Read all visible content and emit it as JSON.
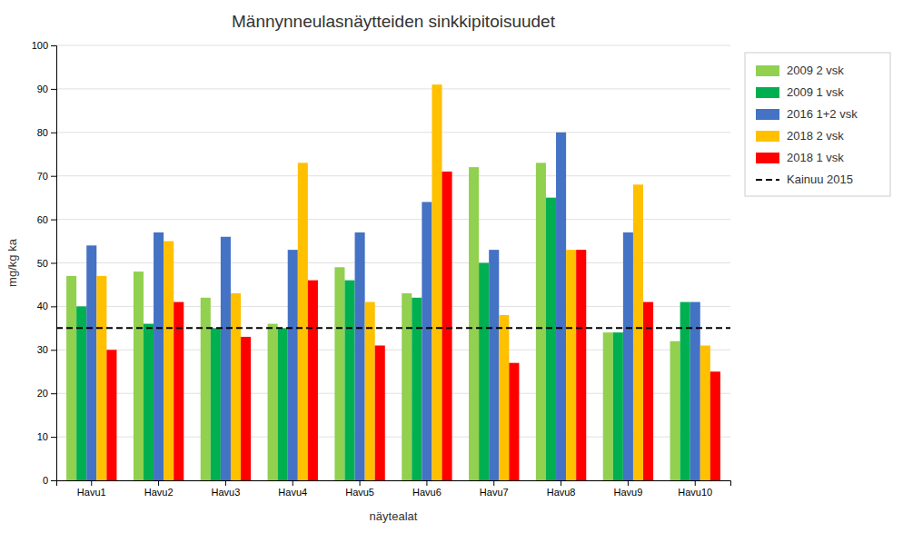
{
  "chart_data": {
    "type": "bar",
    "title": "Männynneulasnäytteiden sinkkipitoisuudet",
    "xlabel": "näytealat",
    "ylabel": "mg/kg ka",
    "categories": [
      "Havu1",
      "Havu2",
      "Havu3",
      "Havu4",
      "Havu5",
      "Havu6",
      "Havu7",
      "Havu8",
      "Havu9",
      "Havu10"
    ],
    "series": [
      {
        "name": "2009 2 vsk",
        "color": "#92D050",
        "values": [
          47,
          48,
          42,
          36,
          49,
          43,
          72,
          73,
          34,
          32
        ]
      },
      {
        "name": "2009 1 vsk",
        "color": "#00B050",
        "values": [
          40,
          36,
          35,
          35,
          46,
          42,
          50,
          65,
          34,
          41
        ]
      },
      {
        "name": "2016 1+2 vsk",
        "color": "#4472C4",
        "values": [
          54,
          57,
          56,
          53,
          57,
          64,
          53,
          80,
          57,
          41
        ]
      },
      {
        "name": "2018 2 vsk",
        "color": "#FFC000",
        "values": [
          47,
          55,
          43,
          73,
          41,
          91,
          38,
          53,
          68,
          31
        ]
      },
      {
        "name": "2018 1 vsk",
        "color": "#FF0000",
        "values": [
          30,
          41,
          33,
          46,
          31,
          71,
          27,
          53,
          41,
          25
        ]
      }
    ],
    "hline": {
      "name": "Kainuu 2015",
      "value": 35,
      "color": "#000000",
      "line_style": "dashed"
    },
    "ylim": [
      0,
      100
    ],
    "yticks": [
      0,
      10,
      20,
      30,
      40,
      50,
      60,
      70,
      80,
      90,
      100
    ],
    "grid": true,
    "legend": "right"
  }
}
